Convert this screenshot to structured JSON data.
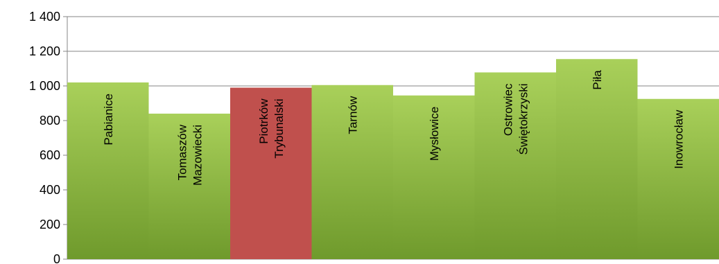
{
  "chart_data": {
    "type": "bar",
    "categories": [
      "Pabianice",
      "Tomaszów Mazowiecki",
      "Piotrków Trybunalski",
      "Tarnów",
      "Mysłowice",
      "Ostrowiec Świętokrzyski",
      "Piła",
      "Inowrocław"
    ],
    "label_lines": [
      [
        "Pabianice"
      ],
      [
        "Tomaszów",
        "Mazowiecki"
      ],
      [
        "Piotrków",
        "Trybunalski"
      ],
      [
        "Tarnów"
      ],
      [
        "Mysłowice"
      ],
      [
        "Ostrowiec",
        "Świętokrzyski"
      ],
      [
        "Piła"
      ],
      [
        "Inowrocław"
      ]
    ],
    "values": [
      1020,
      840,
      990,
      1005,
      945,
      1078,
      1155,
      925
    ],
    "highlight_index": 2,
    "ylim": [
      0,
      1400
    ],
    "yticks": [
      0,
      200,
      400,
      600,
      800,
      1000,
      1200,
      1400
    ],
    "ytick_labels": [
      "0",
      "200",
      "400",
      "600",
      "800",
      "1 000",
      "1 200",
      "1 400"
    ],
    "grid": true,
    "legend": "none",
    "colors": {
      "bar_top": "#a9d05a",
      "bar_bottom": "#6f9a2c",
      "highlight": "#c0504d",
      "grid": "#868686"
    }
  }
}
